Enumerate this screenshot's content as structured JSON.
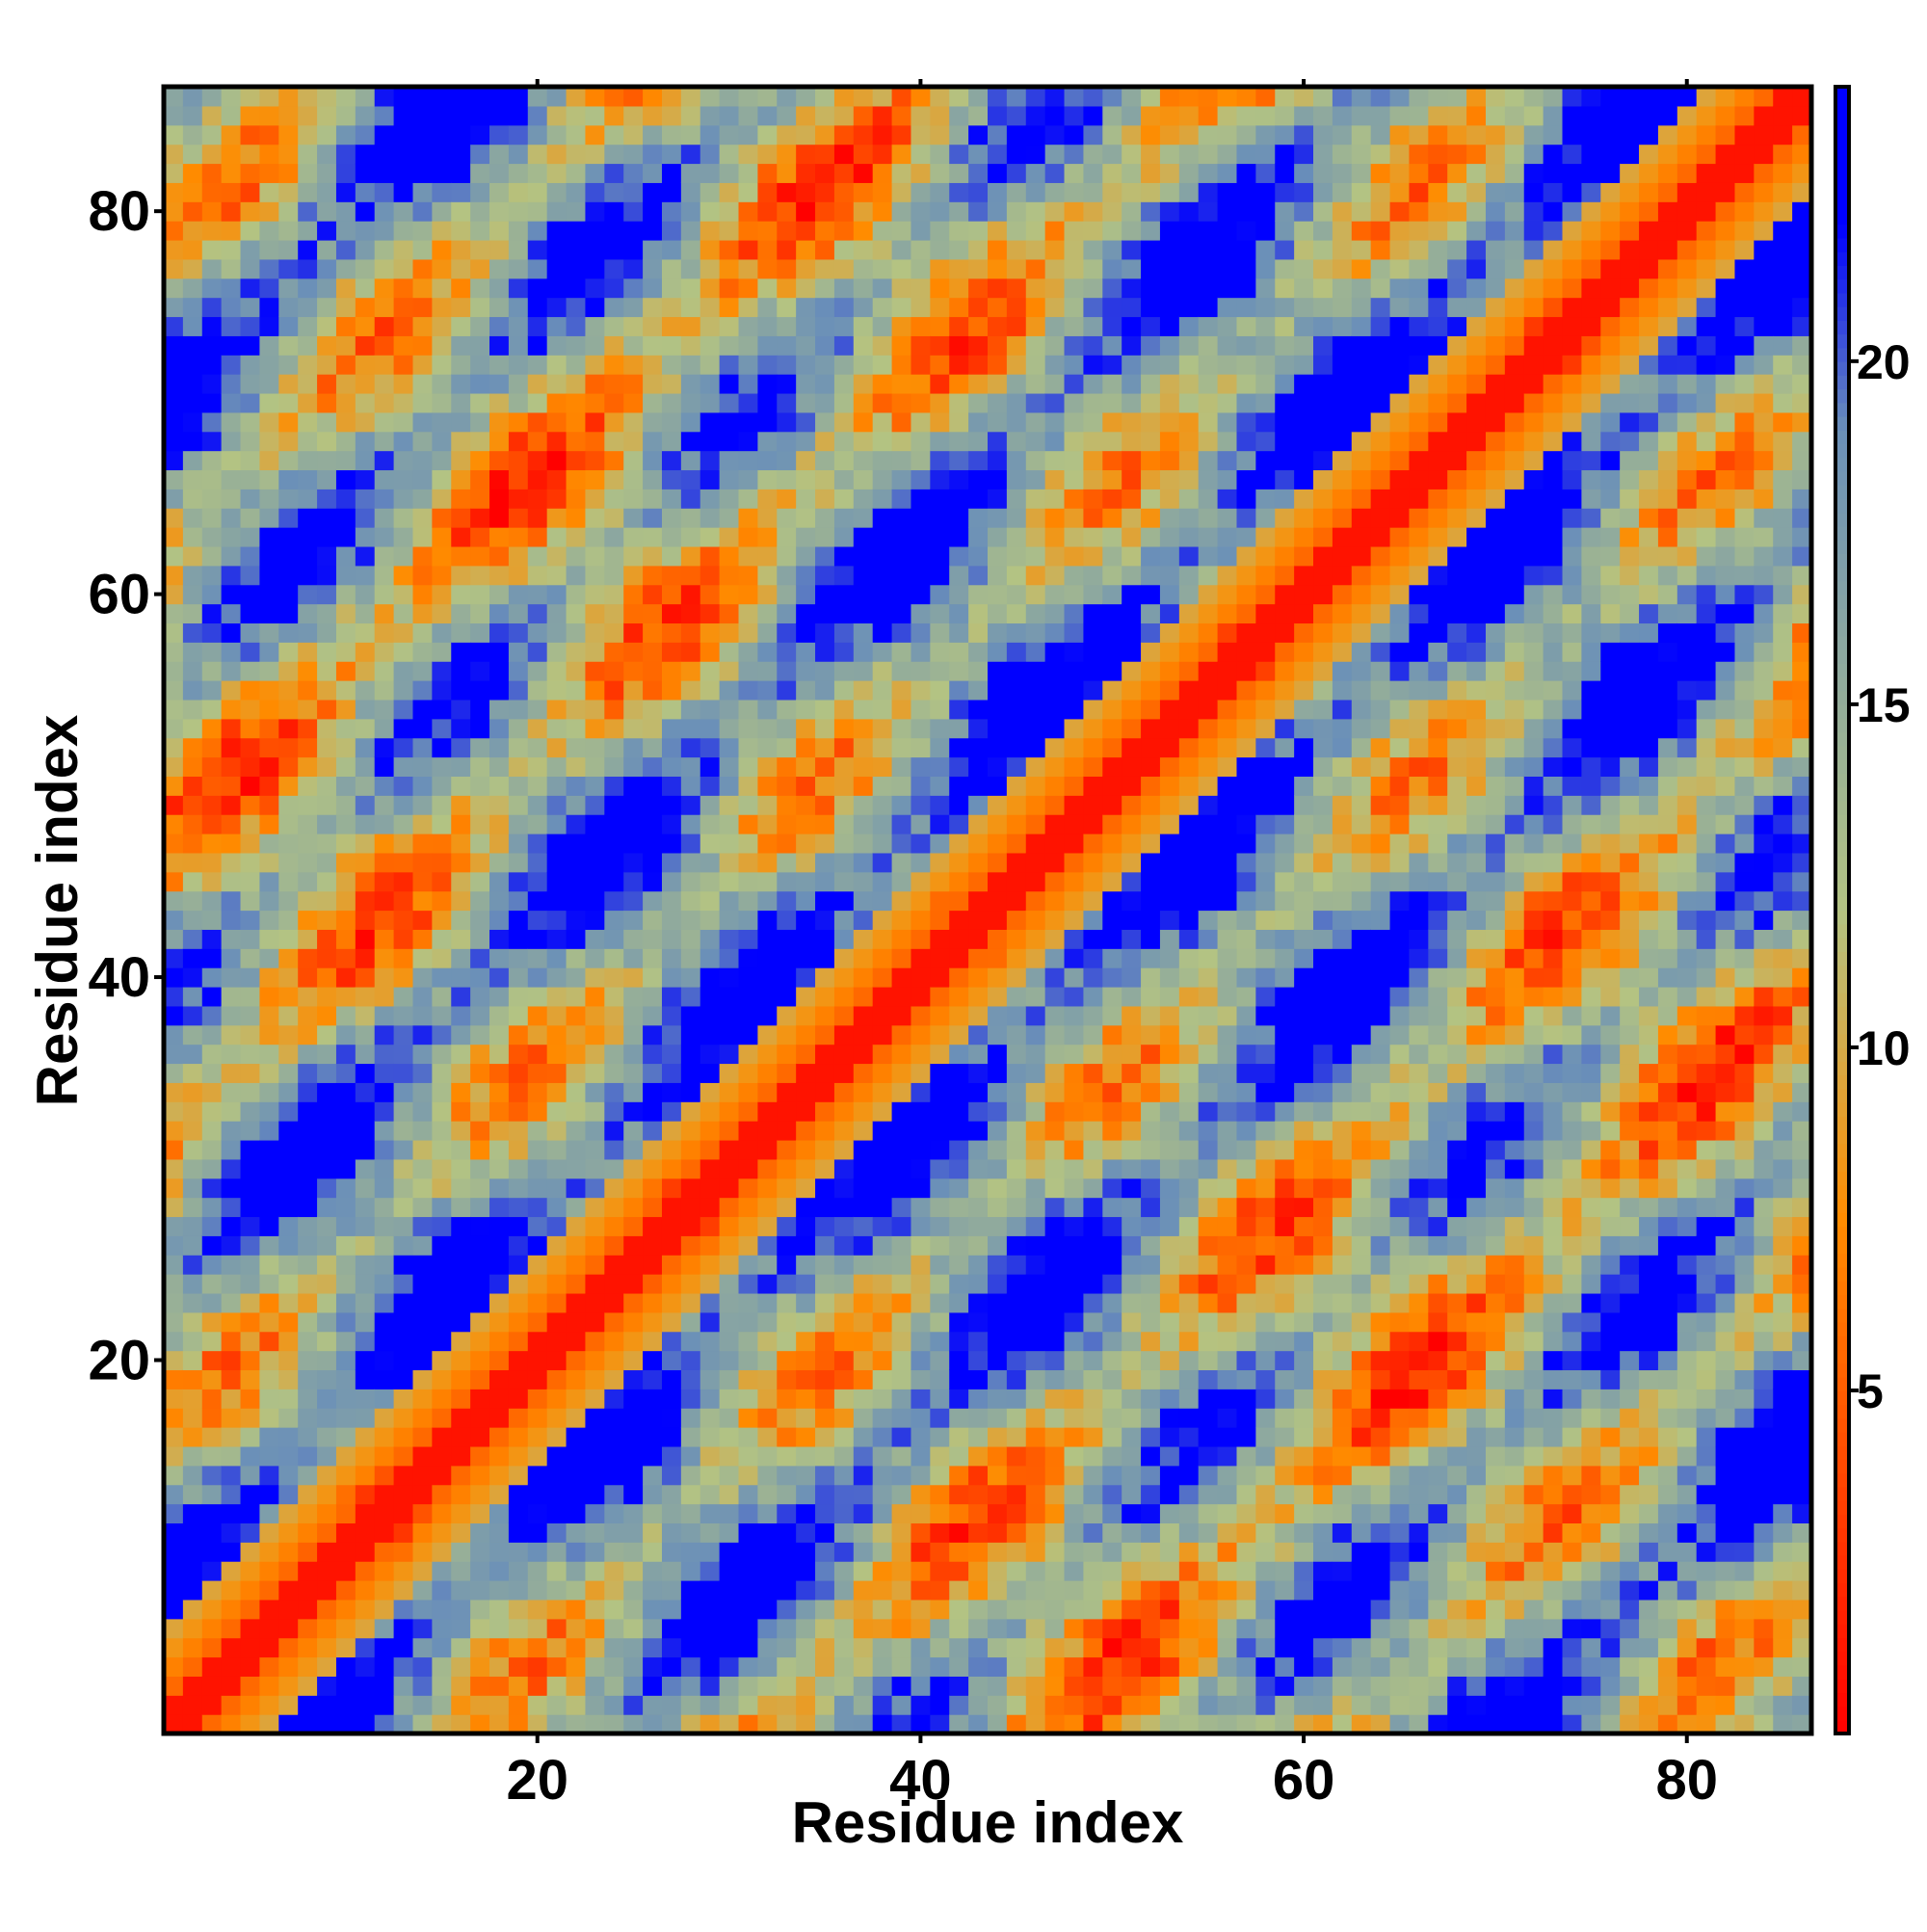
{
  "chart_data": {
    "type": "heatmap",
    "title": "",
    "xlabel": "Residue index",
    "ylabel": "Residue index",
    "xlim": [
      1,
      86
    ],
    "ylim": [
      1,
      86
    ],
    "x_ticks": [
      "20",
      "40",
      "60",
      "80"
    ],
    "y_ticks": [
      "20",
      "40",
      "60",
      "80"
    ],
    "colorbar": {
      "range": [
        0,
        24
      ],
      "ticks": [
        "5",
        "10",
        "15",
        "20"
      ],
      "colors": [
        "#ff0000",
        "#ff8c00",
        "#b3c383",
        "#6b90b8",
        "#0000ff"
      ],
      "stops": [
        0,
        7.5,
        12,
        19,
        22
      ]
    },
    "matrix_description": "Symmetric residue-residue distance matrix (86 x 86); diagonal near 0 (red), near-neighbour helical contacts orange, distant pairs saturate blue above ~22"
  }
}
